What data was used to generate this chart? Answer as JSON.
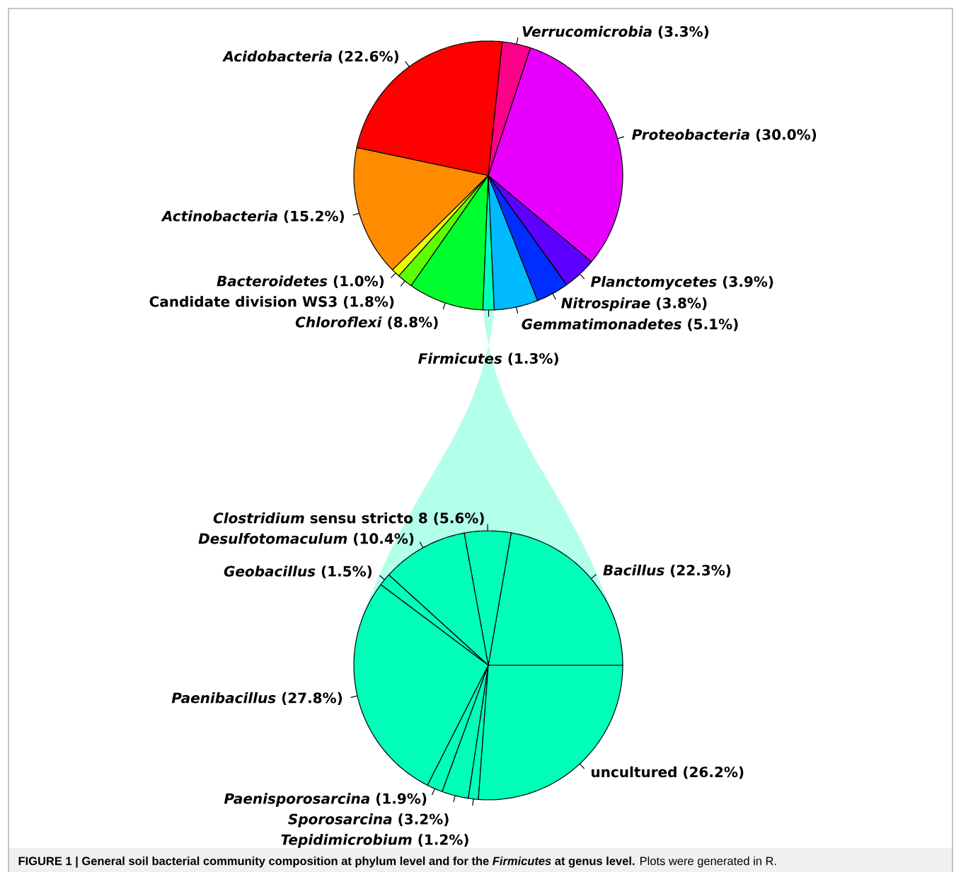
{
  "chart_data": [
    {
      "type": "pie",
      "title": "**FIGURE 1 | General soil bacterial community composition at phylum level and for the *Firmicutes* at genus level.** Plots were generated in R.",
      "categories": [
        "*Acidobacteria*",
        "*Actinobacteria*",
        "*Bacteroidetes*",
        "Candidate division WS3",
        "*Chloroflexi*",
        "*Firmicutes*",
        "*Gemmatimonadetes*",
        "*Nitrospirae*",
        "*Planctomycetes*",
        "*Proteobacteria*",
        "*Verrucomicrobia*"
      ],
      "values": [
        22.6,
        15.2,
        1.0,
        1.8,
        8.8,
        1.3,
        5.1,
        3.8,
        3.9,
        30.0,
        3.3
      ],
      "value_labels": [
        "(22.6%)",
        "(15.2%)",
        "(1.0%)",
        "(1.8%)",
        "(8.8%)",
        "(1.3%)",
        "(5.1%)",
        "(3.8%)",
        "(3.9%)",
        "(30.0%)",
        "(3.3%)"
      ],
      "colors": [
        "#ff0000",
        "#ff8b00",
        "#e8ff00",
        "#5dff00",
        "#00ff2e",
        "#00ffb9",
        "#00b9ff",
        "#002eff",
        "#5d00ff",
        "#e800ff",
        "#ff008b"
      ]
    },
    {
      "type": "pie",
      "categories": [
        "*Bacillus*",
        "*Clostridium* sensu stricto 8",
        "*Desulfotomaculum*",
        "*Geobacillus*",
        "*Paenibacillus*",
        "*Paenisporosarcina*",
        "*Sporosarcina*",
        "*Tepidimicrobium*",
        "uncultured"
      ],
      "values": [
        22.3,
        5.6,
        10.4,
        1.5,
        27.8,
        1.9,
        3.2,
        1.2,
        26.2
      ],
      "value_labels": [
        "(22.3%)",
        "(5.6%)",
        "(10.4%)",
        "(1.5%)",
        "(27.8%)",
        "(1.9%)",
        "(3.2%)",
        "(1.2%)",
        "(26.2%)"
      ],
      "colors": [
        "#00ffb9",
        "#00ffb9",
        "#00ffb9",
        "#00ffb9",
        "#00ffb9",
        "#00ffb9",
        "#00ffb9",
        "#00ffb9",
        "#00ffb9"
      ]
    }
  ]
}
